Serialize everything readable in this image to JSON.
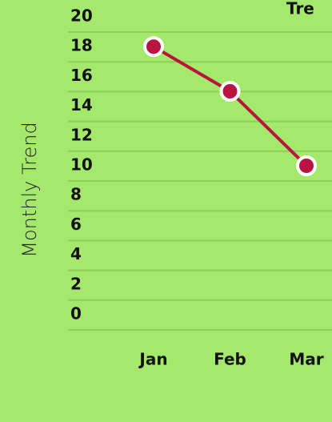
{
  "chart_data": {
    "type": "line",
    "title": "Tre",
    "y_label": "Monthly Trend",
    "categories": [
      "Jan",
      "Feb",
      "Mar"
    ],
    "values": [
      18,
      15,
      10
    ],
    "color": "#b8143f",
    "ylim": [
      0,
      20
    ],
    "yticks": [
      0,
      2,
      4,
      6,
      8,
      10,
      12,
      14,
      16,
      18,
      20
    ],
    "grid": true
  }
}
